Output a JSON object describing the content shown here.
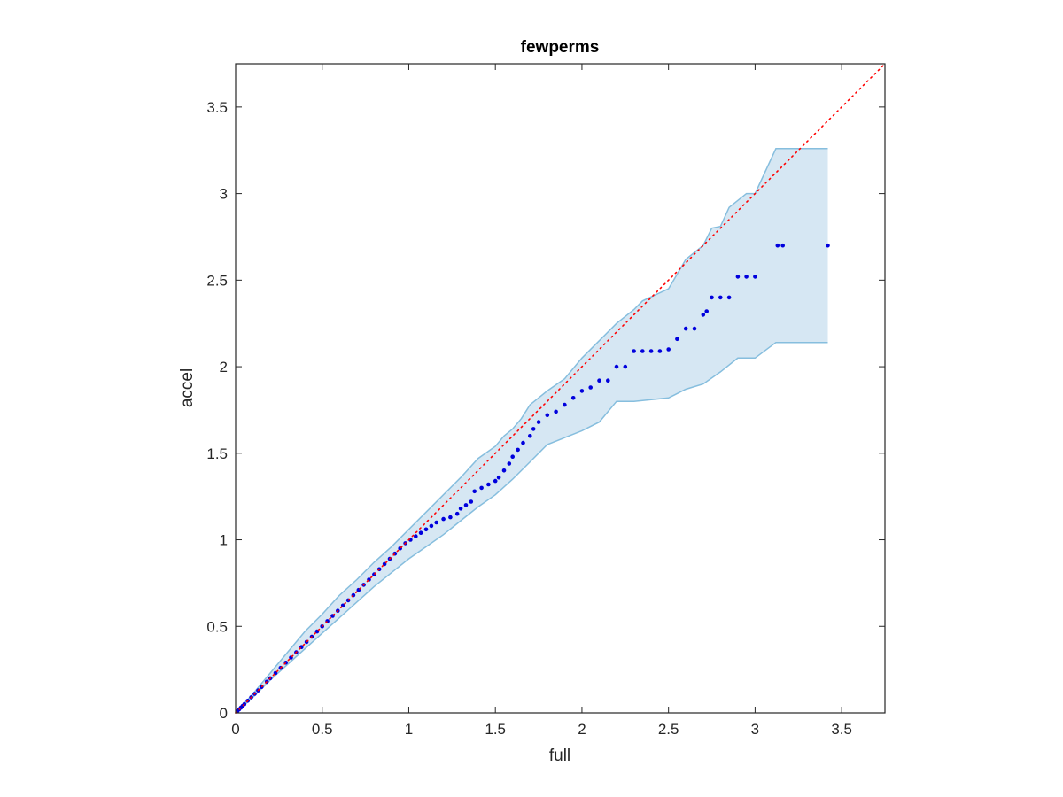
{
  "chart_data": {
    "type": "scatter",
    "title": "fewperms",
    "xlabel": "full",
    "ylabel": "accel",
    "xlim": [
      0,
      3.75
    ],
    "ylim": [
      0,
      3.75
    ],
    "xticks": [
      0,
      0.5,
      1,
      1.5,
      2,
      2.5,
      3,
      3.5
    ],
    "yticks": [
      0,
      0.5,
      1,
      1.5,
      2,
      2.5,
      3,
      3.5
    ],
    "xtick_labels": [
      "0",
      "0.5",
      "1",
      "1.5",
      "2",
      "2.5",
      "3",
      "3.5"
    ],
    "ytick_labels": [
      "0",
      "0.5",
      "1",
      "1.5",
      "2",
      "2.5",
      "3",
      "3.5"
    ],
    "grid": false,
    "colors": {
      "points": "#0000dd",
      "diagonal": "#ff0000",
      "band_fill": "#d6e7f3",
      "band_edge": "#86bede"
    },
    "reference_line": {
      "style": "dotted",
      "x": [
        0,
        3.75
      ],
      "y": [
        0,
        3.75
      ]
    },
    "band": {
      "upper": [
        [
          0,
          0
        ],
        [
          0.1,
          0.11
        ],
        [
          0.2,
          0.23
        ],
        [
          0.3,
          0.35
        ],
        [
          0.4,
          0.47
        ],
        [
          0.5,
          0.57
        ],
        [
          0.6,
          0.68
        ],
        [
          0.7,
          0.77
        ],
        [
          0.8,
          0.87
        ],
        [
          0.9,
          0.96
        ],
        [
          1.0,
          1.06
        ],
        [
          1.1,
          1.16
        ],
        [
          1.2,
          1.26
        ],
        [
          1.3,
          1.36
        ],
        [
          1.4,
          1.47
        ],
        [
          1.5,
          1.54
        ],
        [
          1.55,
          1.6
        ],
        [
          1.6,
          1.64
        ],
        [
          1.65,
          1.7
        ],
        [
          1.7,
          1.78
        ],
        [
          1.8,
          1.86
        ],
        [
          1.9,
          1.93
        ],
        [
          2.0,
          2.05
        ],
        [
          2.1,
          2.15
        ],
        [
          2.2,
          2.25
        ],
        [
          2.3,
          2.33
        ],
        [
          2.35,
          2.38
        ],
        [
          2.5,
          2.45
        ],
        [
          2.6,
          2.62
        ],
        [
          2.7,
          2.7
        ],
        [
          2.75,
          2.8
        ],
        [
          2.8,
          2.81
        ],
        [
          2.85,
          2.92
        ],
        [
          2.95,
          3.0
        ],
        [
          3.0,
          3.0
        ],
        [
          3.12,
          3.26
        ],
        [
          3.42,
          3.26
        ]
      ],
      "lower": [
        [
          0,
          0
        ],
        [
          0.1,
          0.09
        ],
        [
          0.2,
          0.19
        ],
        [
          0.3,
          0.28
        ],
        [
          0.4,
          0.37
        ],
        [
          0.5,
          0.46
        ],
        [
          0.6,
          0.55
        ],
        [
          0.7,
          0.64
        ],
        [
          0.8,
          0.73
        ],
        [
          0.9,
          0.81
        ],
        [
          1.0,
          0.89
        ],
        [
          1.1,
          0.96
        ],
        [
          1.2,
          1.03
        ],
        [
          1.3,
          1.11
        ],
        [
          1.4,
          1.19
        ],
        [
          1.5,
          1.26
        ],
        [
          1.6,
          1.35
        ],
        [
          1.7,
          1.45
        ],
        [
          1.8,
          1.55
        ],
        [
          1.9,
          1.59
        ],
        [
          2.0,
          1.63
        ],
        [
          2.1,
          1.68
        ],
        [
          2.2,
          1.8
        ],
        [
          2.3,
          1.8
        ],
        [
          2.5,
          1.82
        ],
        [
          2.6,
          1.87
        ],
        [
          2.7,
          1.9
        ],
        [
          2.8,
          1.97
        ],
        [
          2.9,
          2.05
        ],
        [
          3.0,
          2.05
        ],
        [
          3.12,
          2.14
        ],
        [
          3.42,
          2.14
        ]
      ]
    },
    "points": [
      [
        0.01,
        0.01
      ],
      [
        0.02,
        0.02
      ],
      [
        0.03,
        0.03
      ],
      [
        0.04,
        0.04
      ],
      [
        0.05,
        0.05
      ],
      [
        0.07,
        0.07
      ],
      [
        0.09,
        0.09
      ],
      [
        0.11,
        0.11
      ],
      [
        0.13,
        0.13
      ],
      [
        0.15,
        0.15
      ],
      [
        0.18,
        0.18
      ],
      [
        0.2,
        0.2
      ],
      [
        0.23,
        0.23
      ],
      [
        0.26,
        0.26
      ],
      [
        0.29,
        0.29
      ],
      [
        0.32,
        0.32
      ],
      [
        0.35,
        0.35
      ],
      [
        0.38,
        0.38
      ],
      [
        0.41,
        0.41
      ],
      [
        0.44,
        0.44
      ],
      [
        0.47,
        0.47
      ],
      [
        0.5,
        0.5
      ],
      [
        0.53,
        0.53
      ],
      [
        0.56,
        0.56
      ],
      [
        0.59,
        0.59
      ],
      [
        0.62,
        0.62
      ],
      [
        0.65,
        0.65
      ],
      [
        0.68,
        0.68
      ],
      [
        0.71,
        0.71
      ],
      [
        0.74,
        0.74
      ],
      [
        0.77,
        0.77
      ],
      [
        0.8,
        0.8
      ],
      [
        0.83,
        0.83
      ],
      [
        0.86,
        0.86
      ],
      [
        0.89,
        0.89
      ],
      [
        0.92,
        0.92
      ],
      [
        0.95,
        0.95
      ],
      [
        0.98,
        0.98
      ],
      [
        1.01,
        1.0
      ],
      [
        1.04,
        1.02
      ],
      [
        1.07,
        1.04
      ],
      [
        1.1,
        1.06
      ],
      [
        1.13,
        1.08
      ],
      [
        1.16,
        1.1
      ],
      [
        1.2,
        1.12
      ],
      [
        1.24,
        1.13
      ],
      [
        1.28,
        1.15
      ],
      [
        1.3,
        1.18
      ],
      [
        1.33,
        1.2
      ],
      [
        1.36,
        1.22
      ],
      [
        1.38,
        1.28
      ],
      [
        1.42,
        1.3
      ],
      [
        1.46,
        1.32
      ],
      [
        1.5,
        1.34
      ],
      [
        1.52,
        1.36
      ],
      [
        1.55,
        1.4
      ],
      [
        1.58,
        1.44
      ],
      [
        1.6,
        1.48
      ],
      [
        1.63,
        1.52
      ],
      [
        1.66,
        1.56
      ],
      [
        1.7,
        1.6
      ],
      [
        1.72,
        1.64
      ],
      [
        1.75,
        1.68
      ],
      [
        1.8,
        1.72
      ],
      [
        1.85,
        1.74
      ],
      [
        1.9,
        1.78
      ],
      [
        1.95,
        1.82
      ],
      [
        2.0,
        1.86
      ],
      [
        2.05,
        1.88
      ],
      [
        2.1,
        1.92
      ],
      [
        2.15,
        1.92
      ],
      [
        2.2,
        2.0
      ],
      [
        2.25,
        2.0
      ],
      [
        2.3,
        2.09
      ],
      [
        2.35,
        2.09
      ],
      [
        2.4,
        2.09
      ],
      [
        2.45,
        2.09
      ],
      [
        2.5,
        2.1
      ],
      [
        2.55,
        2.16
      ],
      [
        2.6,
        2.22
      ],
      [
        2.65,
        2.22
      ],
      [
        2.7,
        2.3
      ],
      [
        2.72,
        2.32
      ],
      [
        2.75,
        2.4
      ],
      [
        2.8,
        2.4
      ],
      [
        2.85,
        2.4
      ],
      [
        2.9,
        2.52
      ],
      [
        2.95,
        2.52
      ],
      [
        3.0,
        2.52
      ],
      [
        3.13,
        2.7
      ],
      [
        3.16,
        2.7
      ],
      [
        3.42,
        2.7
      ]
    ]
  }
}
